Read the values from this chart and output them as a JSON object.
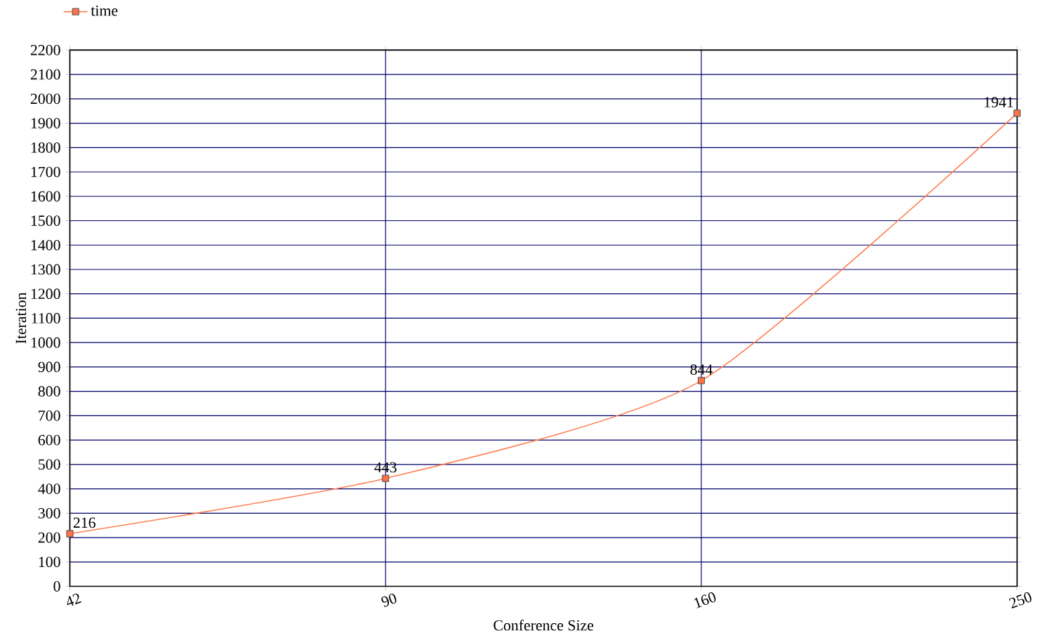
{
  "chart_data": {
    "type": "line",
    "categories": [
      "42",
      "90",
      "160",
      "250"
    ],
    "series": [
      {
        "name": "time",
        "color": "#ff7f50",
        "values": [
          216,
          443,
          844,
          1941
        ]
      }
    ],
    "xlabel": "Conference Size",
    "ylabel": "Iteration",
    "ylim": [
      0,
      2200
    ],
    "yticks": [
      0,
      100,
      200,
      300,
      400,
      500,
      600,
      700,
      800,
      900,
      1000,
      1100,
      1200,
      1300,
      1400,
      1500,
      1600,
      1700,
      1800,
      1900,
      2000,
      2100,
      2200
    ],
    "grid": true,
    "legend": "top left",
    "marker": "square",
    "line_style": "solid",
    "data_labels": true
  }
}
